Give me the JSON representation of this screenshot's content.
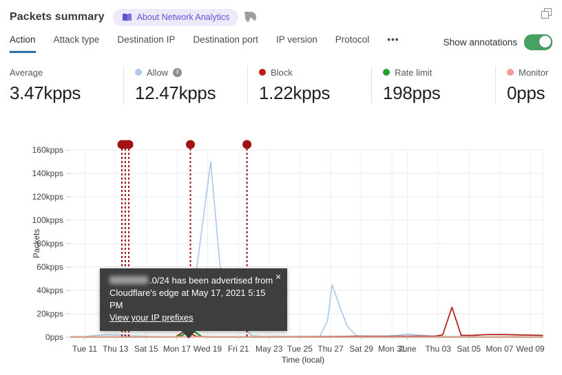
{
  "header": {
    "title": "Packets summary",
    "badge_label": "About Network Analytics"
  },
  "tabs": {
    "items": [
      {
        "label": "Action",
        "active": true
      },
      {
        "label": "Attack type",
        "active": false
      },
      {
        "label": "Destination IP",
        "active": false
      },
      {
        "label": "Destination port",
        "active": false
      },
      {
        "label": "IP version",
        "active": false
      },
      {
        "label": "Protocol",
        "active": false
      },
      {
        "label": "•••",
        "active": false
      }
    ],
    "show_annotations_label": "Show annotations",
    "toggle_state": "on",
    "toggle_color": "#46a263"
  },
  "stats": [
    {
      "label": "Average",
      "value": "3.47kpps",
      "dot": ""
    },
    {
      "label": "Allow",
      "value": "12.47kpps",
      "dot": "#aec6e8",
      "info": true
    },
    {
      "label": "Block",
      "value": "1.22kpps",
      "dot": "#c11a12"
    },
    {
      "label": "Rate limit",
      "value": "198pps",
      "dot": "#23a12c"
    },
    {
      "label": "Monitor",
      "value": "0pps",
      "dot": "#f79b96"
    }
  ],
  "tooltip": {
    "text_after_redaction": ".0/24 has been advertised from",
    "text_line2": "Cloudflare's edge at May 17, 2021 5:15 PM",
    "link": "View your IP prefixes",
    "close": "×"
  },
  "chart_data": {
    "type": "line",
    "ylabel": "Packets",
    "xlabel": "Time (local)",
    "ylim_kpps": [
      0,
      160
    ],
    "grid": true,
    "y_ticks": [
      {
        "label": "0pps",
        "v": 0
      },
      {
        "label": "20kpps",
        "v": 20
      },
      {
        "label": "40kpps",
        "v": 40
      },
      {
        "label": "60kpps",
        "v": 60
      },
      {
        "label": "80kpps",
        "v": 80
      },
      {
        "label": "100kpps",
        "v": 100
      },
      {
        "label": "120kpps",
        "v": 120
      },
      {
        "label": "140kpps",
        "v": 140
      },
      {
        "label": "160kpps",
        "v": 160
      }
    ],
    "x_ticks": [
      {
        "label": "Tue 11",
        "d": 11
      },
      {
        "label": "Thu 13",
        "d": 13
      },
      {
        "label": "Sat 15",
        "d": 15
      },
      {
        "label": "Mon 17",
        "d": 17
      },
      {
        "label": "Wed 19",
        "d": 19
      },
      {
        "label": "Fri 21",
        "d": 21
      },
      {
        "label": "May 23",
        "d": 23
      },
      {
        "label": "Tue 25",
        "d": 25
      },
      {
        "label": "Thu 27",
        "d": 27
      },
      {
        "label": "Sat 29",
        "d": 29
      },
      {
        "label": "Mon 31",
        "d": 31
      },
      {
        "label": "June",
        "d": 32
      },
      {
        "label": "Thu 03",
        "d": 34
      },
      {
        "label": "Sat 05",
        "d": 36
      },
      {
        "label": "Mon 07",
        "d": 38
      },
      {
        "label": "Wed 09",
        "d": 40
      }
    ],
    "x_unit_note": "d = day of May 2021 (June dates = date + 31)",
    "series": [
      {
        "name": "Allow",
        "color": "#abc7e8",
        "width": 1.6,
        "points_day_kpps": [
          [
            10.1,
            0.4
          ],
          [
            11,
            0.6
          ],
          [
            11.8,
            1.6
          ],
          [
            12.6,
            2.1
          ],
          [
            13.2,
            1.9
          ],
          [
            14,
            1.1
          ],
          [
            15,
            0.7
          ],
          [
            16,
            0.4
          ],
          [
            16.8,
            0.3
          ],
          [
            17.2,
            0.8
          ],
          [
            17.6,
            15
          ],
          [
            18.3,
            60
          ],
          [
            19.2,
            150
          ],
          [
            19.8,
            62
          ],
          [
            20.3,
            31
          ],
          [
            20.9,
            13
          ],
          [
            21.4,
            7.5
          ],
          [
            21.9,
            1.2
          ],
          [
            22.6,
            0.5
          ],
          [
            23.5,
            0.8
          ],
          [
            24.5,
            0.4
          ],
          [
            25.5,
            0.4
          ],
          [
            26.3,
            0.6
          ],
          [
            26.8,
            14
          ],
          [
            27.1,
            45
          ],
          [
            27.6,
            26
          ],
          [
            28.1,
            9
          ],
          [
            28.7,
            1
          ],
          [
            29.5,
            0.5
          ],
          [
            30.5,
            0.7
          ],
          [
            31.3,
            1.6
          ],
          [
            32,
            2.6
          ],
          [
            32.8,
            1.8
          ],
          [
            33.5,
            0.8
          ],
          [
            34.5,
            0.5
          ],
          [
            35.5,
            0.6
          ],
          [
            36.5,
            0.4
          ],
          [
            38,
            0.4
          ],
          [
            39,
            0.5
          ],
          [
            40.8,
            0.4
          ]
        ]
      },
      {
        "name": "Block",
        "color": "#b2231a",
        "width": 1.8,
        "points_day_kpps": [
          [
            10.1,
            0.3
          ],
          [
            13,
            0.3
          ],
          [
            16.9,
            0.3
          ],
          [
            17.5,
            4.8
          ],
          [
            18.3,
            0.5
          ],
          [
            19.5,
            0.3
          ],
          [
            23,
            0.3
          ],
          [
            25,
            0.5
          ],
          [
            27.5,
            0.6
          ],
          [
            29,
            0.8
          ],
          [
            31,
            0.7
          ],
          [
            32.5,
            0.9
          ],
          [
            33.8,
            0.8
          ],
          [
            34.3,
            2
          ],
          [
            34.9,
            25.5
          ],
          [
            35.5,
            1.5
          ],
          [
            36.3,
            1.6
          ],
          [
            37,
            2.1
          ],
          [
            37.8,
            2.3
          ],
          [
            38.6,
            2.2
          ],
          [
            39.4,
            1.9
          ],
          [
            40.8,
            1.5
          ]
        ]
      },
      {
        "name": "Rate limit",
        "color": "#2aa12e",
        "width": 2.4,
        "points_day_kpps": [
          [
            10.1,
            0.1
          ],
          [
            16.9,
            0.15
          ],
          [
            17.35,
            1.5
          ],
          [
            17.9,
            7
          ],
          [
            18.62,
            0.3
          ],
          [
            19.5,
            0.1
          ],
          [
            40.8,
            0.1
          ]
        ]
      },
      {
        "name": "Monitor",
        "color": "#f6a29d",
        "width": 2,
        "points_day_kpps": [
          [
            10.1,
            0.1
          ],
          [
            40.8,
            0.1
          ]
        ]
      }
    ],
    "annotations": {
      "color": "#a31313",
      "style": "vertical dotted line with circle marker above plot",
      "events_day": [
        13.42,
        13.64,
        13.87,
        17.88,
        21.56
      ]
    },
    "legend_position": "stats row above chart"
  }
}
